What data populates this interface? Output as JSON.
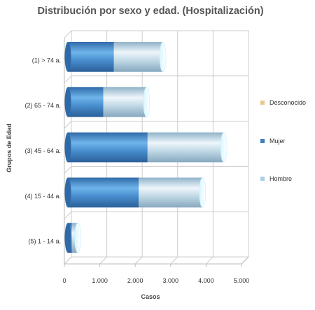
{
  "chart_data": {
    "type": "bar",
    "orientation": "horizontal",
    "stacked": true,
    "three_d": true,
    "title": "Distribución por sexo y edad. (Hospitalización)",
    "xlabel": "Casos",
    "ylabel": "Grupos de Edad",
    "categories": [
      "(1) > 74 a.",
      "(2) 65 - 74 a.",
      "(3) 45 - 64 a.",
      "(4) 15 - 44 a.",
      "(5) 1 - 14 a."
    ],
    "xlim": [
      0,
      5000
    ],
    "xticks": [
      0,
      1000,
      2000,
      3000,
      4000,
      5000
    ],
    "xtick_labels": [
      "0",
      "1.000",
      "2.000",
      "3.000",
      "4.000",
      "5.000"
    ],
    "grid": true,
    "legend_position": "right",
    "series": [
      {
        "name": "Desconocido",
        "color": "#e8c98a",
        "values": [
          0,
          0,
          0,
          0,
          0
        ]
      },
      {
        "name": "Mujer",
        "color": "#3f7fc4",
        "values": [
          1300,
          1000,
          2250,
          2000,
          110
        ]
      },
      {
        "name": "Hombre",
        "color": "#a9cfe8",
        "values": [
          1380,
          1220,
          2150,
          1800,
          170
        ]
      }
    ]
  }
}
